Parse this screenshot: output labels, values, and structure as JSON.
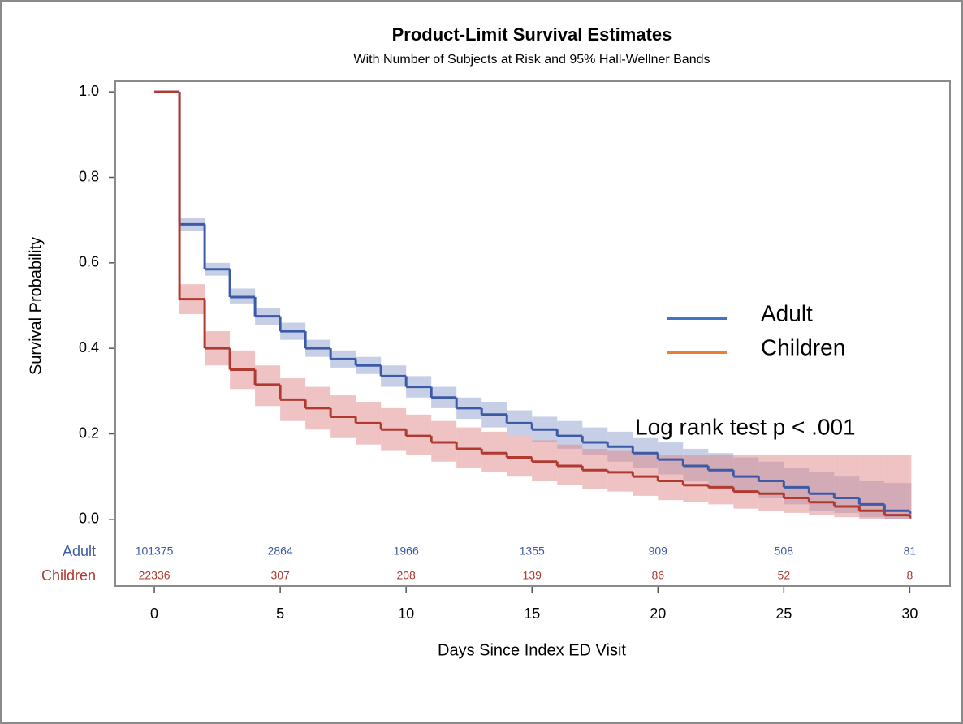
{
  "chart_data": {
    "type": "step",
    "title": "Product-Limit Survival Estimates",
    "subtitle": "With Number of Subjects at Risk and 95% Hall-Wellner Bands",
    "x_label": "Days Since Index ED Visit",
    "y_label": "Survival Probability",
    "annotation": "Log rank test p < .001",
    "x": [
      0,
      1,
      2,
      3,
      4,
      5,
      6,
      7,
      8,
      9,
      10,
      11,
      12,
      13,
      14,
      15,
      16,
      17,
      18,
      19,
      20,
      21,
      22,
      23,
      24,
      25,
      26,
      27,
      28,
      29,
      30
    ],
    "series": [
      {
        "name": "Adult",
        "color": "#3c5aa6",
        "band_color": "#8fa0cf",
        "legend_color": "#4472c4",
        "values": [
          1,
          0.69,
          0.585,
          0.52,
          0.475,
          0.44,
          0.4,
          0.375,
          0.36,
          0.335,
          0.31,
          0.285,
          0.26,
          0.245,
          0.225,
          0.21,
          0.195,
          0.18,
          0.17,
          0.155,
          0.14,
          0.125,
          0.115,
          0.1,
          0.09,
          0.075,
          0.06,
          0.05,
          0.035,
          0.02,
          0.015
        ],
        "lower": [
          1,
          0.675,
          0.57,
          0.505,
          0.455,
          0.42,
          0.38,
          0.355,
          0.34,
          0.31,
          0.285,
          0.26,
          0.235,
          0.215,
          0.195,
          0.18,
          0.165,
          0.15,
          0.135,
          0.12,
          0.105,
          0.09,
          0.075,
          0.06,
          0.05,
          0.035,
          0.02,
          0.015,
          0.005,
          0,
          0
        ],
        "upper": [
          1,
          0.705,
          0.6,
          0.54,
          0.495,
          0.46,
          0.42,
          0.395,
          0.38,
          0.36,
          0.335,
          0.31,
          0.285,
          0.275,
          0.255,
          0.24,
          0.23,
          0.215,
          0.205,
          0.19,
          0.18,
          0.165,
          0.155,
          0.145,
          0.135,
          0.12,
          0.11,
          0.1,
          0.09,
          0.085,
          0.085
        ]
      },
      {
        "name": "Children",
        "color": "#b03a30",
        "band_color": "#e08888",
        "legend_color": "#ed7d31",
        "values": [
          1,
          0.515,
          0.4,
          0.35,
          0.315,
          0.28,
          0.26,
          0.24,
          0.225,
          0.21,
          0.195,
          0.18,
          0.165,
          0.155,
          0.145,
          0.135,
          0.125,
          0.115,
          0.11,
          0.1,
          0.09,
          0.08,
          0.075,
          0.065,
          0.06,
          0.05,
          0.04,
          0.03,
          0.02,
          0.01,
          0.005
        ],
        "lower": [
          1,
          0.48,
          0.36,
          0.305,
          0.265,
          0.23,
          0.21,
          0.19,
          0.175,
          0.16,
          0.15,
          0.135,
          0.12,
          0.11,
          0.1,
          0.09,
          0.08,
          0.07,
          0.065,
          0.055,
          0.045,
          0.04,
          0.035,
          0.025,
          0.02,
          0.015,
          0.01,
          0.005,
          0,
          0,
          0
        ],
        "upper": [
          1,
          0.55,
          0.44,
          0.395,
          0.36,
          0.33,
          0.31,
          0.29,
          0.275,
          0.26,
          0.245,
          0.23,
          0.215,
          0.205,
          0.195,
          0.185,
          0.175,
          0.165,
          0.16,
          0.155,
          0.15,
          0.15,
          0.15,
          0.15,
          0.15,
          0.15,
          0.15,
          0.15,
          0.15,
          0.15,
          0.15
        ]
      }
    ],
    "at_risk": {
      "x": [
        0,
        5,
        10,
        15,
        20,
        25,
        30
      ],
      "series": [
        {
          "name": "Adult",
          "values": [
            101375,
            2864,
            1966,
            1355,
            909,
            508,
            81
          ]
        },
        {
          "name": "Children",
          "values": [
            22336,
            307,
            208,
            139,
            86,
            52,
            8
          ]
        }
      ]
    },
    "xlim": [
      -1.55,
      31.6
    ],
    "ylim": [
      -0.156,
      1.025
    ],
    "xticks": [
      0,
      5,
      10,
      15,
      20,
      25,
      30
    ],
    "yticks": [
      {
        "value": 0,
        "label": "0.0"
      },
      {
        "value": 0.2,
        "label": "0.2"
      },
      {
        "value": 0.4,
        "label": "0.4"
      },
      {
        "value": 0.6,
        "label": "0.6"
      },
      {
        "value": 0.8,
        "label": "0.8"
      },
      {
        "value": 1,
        "label": "1.0"
      }
    ],
    "legend": "right"
  }
}
